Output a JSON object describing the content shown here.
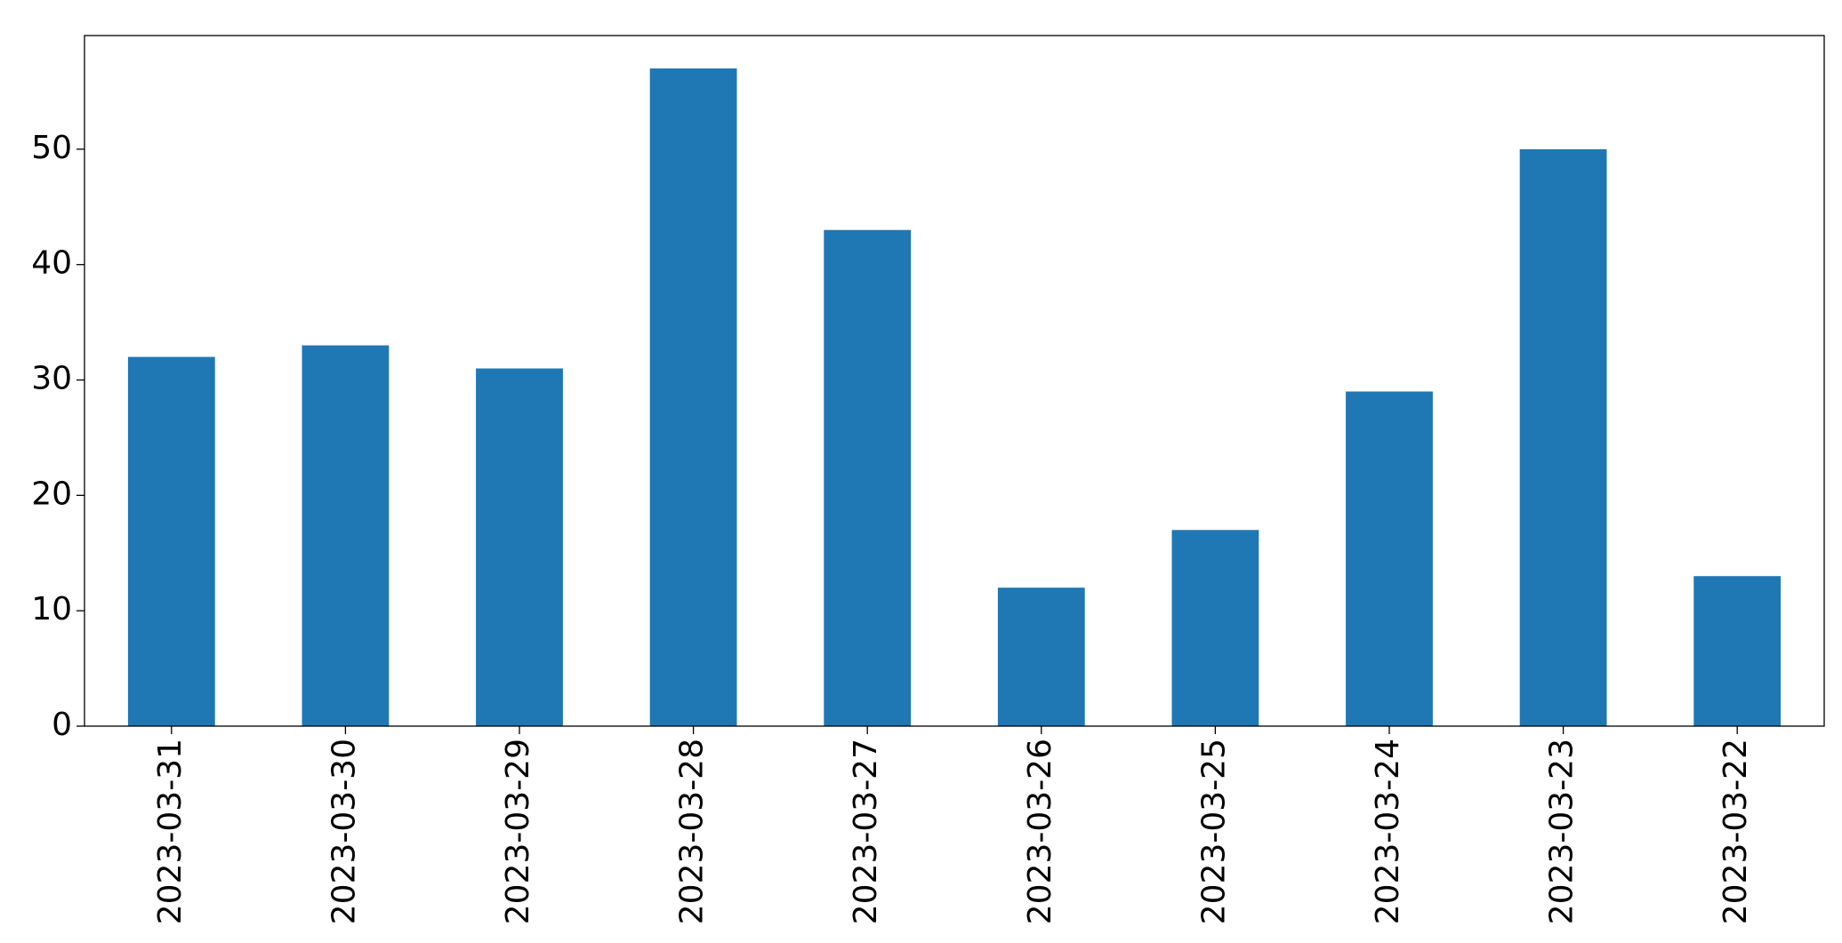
{
  "chart_data": {
    "type": "bar",
    "categories": [
      "2023-03-31",
      "2023-03-30",
      "2023-03-29",
      "2023-03-28",
      "2023-03-27",
      "2023-03-26",
      "2023-03-25",
      "2023-03-24",
      "2023-03-23",
      "2023-03-22"
    ],
    "values": [
      32,
      33,
      31,
      57,
      43,
      12,
      17,
      29,
      50,
      13
    ],
    "color": "#1f77b4",
    "ylim": [
      0,
      59.85
    ],
    "yticks": [
      0,
      10,
      20,
      30,
      40,
      50
    ],
    "grid": false
  }
}
